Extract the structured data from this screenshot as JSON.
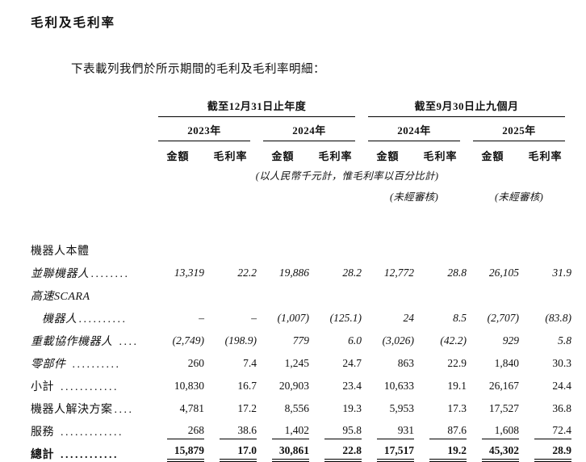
{
  "page": {
    "title": "毛利及毛利率",
    "intro": "下表載列我們於所示期間的毛利及毛利率明細："
  },
  "table": {
    "groups": [
      {
        "label": "截至12月31日止年度",
        "years": [
          "2023年",
          "2024年"
        ]
      },
      {
        "label": "截至9月30日止九個月",
        "years": [
          "2024年",
          "2025年"
        ]
      }
    ],
    "col_labels": {
      "amount": "金額",
      "margin": "毛利率"
    },
    "units_note": "(以人民幣千元計，惟毛利率以百分比計)",
    "unaudited_note": "(未經審核)",
    "rows": [
      {
        "label": "機器人本體",
        "leader": "",
        "values": [
          "",
          "",
          "",
          "",
          "",
          "",
          "",
          ""
        ]
      },
      {
        "label": "並聯機器人",
        "leader": "........",
        "label_italic": true,
        "num_italic": true,
        "values": [
          "13,319",
          "22.2",
          "19,886",
          "28.2",
          "12,772",
          "28.8",
          "26,105",
          "31.9"
        ]
      },
      {
        "label": "高速SCARA",
        "leader": "",
        "label_italic": true,
        "values": [
          "",
          "",
          "",
          "",
          "",
          "",
          "",
          ""
        ]
      },
      {
        "label": "機器人",
        "leader": "..........",
        "label_italic": true,
        "num_italic": true,
        "indent": true,
        "values": [
          "–",
          "–",
          "(1,007)",
          "(125.1)",
          "24",
          "8.5",
          "(2,707)",
          "(83.8)"
        ]
      },
      {
        "label": "重載協作機器人",
        "leader": " ....",
        "label_italic": true,
        "num_italic": true,
        "values": [
          "(2,749)",
          "(198.9)",
          "779",
          "6.0",
          "(3,026)",
          "(42.2)",
          "929",
          "5.8"
        ]
      },
      {
        "label": "零部件",
        "leader": " ..........",
        "label_italic": true,
        "values": [
          "260",
          "7.4",
          "1,245",
          "24.7",
          "863",
          "22.9",
          "1,840",
          "30.3"
        ]
      },
      {
        "label": "小計",
        "leader": " ............",
        "values": [
          "10,830",
          "16.7",
          "20,903",
          "23.4",
          "10,633",
          "19.1",
          "26,167",
          "24.4"
        ]
      },
      {
        "label": "機器人解決方案",
        "leader": "....",
        "values": [
          "4,781",
          "17.2",
          "8,556",
          "19.3",
          "5,953",
          "17.3",
          "17,527",
          "36.8"
        ]
      },
      {
        "label": "服務",
        "leader": " .............",
        "rule": "single",
        "values": [
          "268",
          "38.6",
          "1,402",
          "95.8",
          "931",
          "87.6",
          "1,608",
          "72.4"
        ]
      },
      {
        "label": "總計",
        "leader": " ............",
        "bold": true,
        "rule": "double",
        "values": [
          "15,879",
          "17.0",
          "30,861",
          "22.8",
          "17,517",
          "19.2",
          "45,302",
          "28.9"
        ]
      }
    ]
  }
}
